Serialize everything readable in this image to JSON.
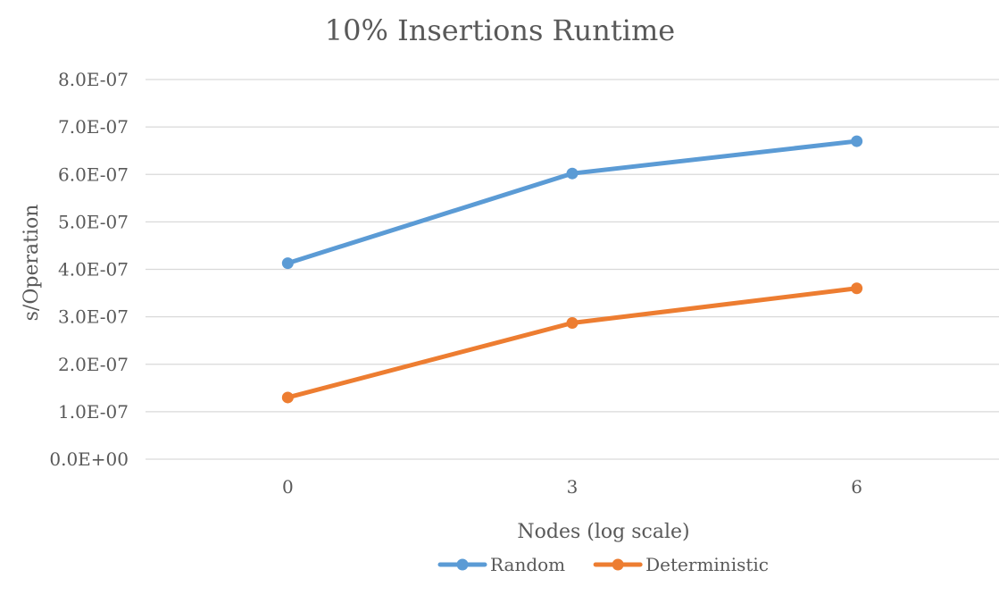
{
  "chart_data": {
    "type": "line",
    "title": "10% Insertions Runtime",
    "xlabel": "Nodes (log scale)",
    "ylabel": "s/Operation",
    "categories": [
      "0",
      "3",
      "6"
    ],
    "ylim": [
      0,
      8e-07
    ],
    "y_ticks": [
      "0.0E+00",
      "1.0E-07",
      "2.0E-07",
      "3.0E-07",
      "4.0E-07",
      "5.0E-07",
      "6.0E-07",
      "7.0E-07",
      "8.0E-07"
    ],
    "grid": "horizontal",
    "legend_position": "bottom",
    "series": [
      {
        "name": "Random",
        "color": "#5B9BD5",
        "values": [
          4.13e-07,
          6.02e-07,
          6.7e-07
        ]
      },
      {
        "name": "Deterministic",
        "color": "#ED7D31",
        "values": [
          1.3e-07,
          2.87e-07,
          3.6e-07
        ]
      }
    ]
  }
}
